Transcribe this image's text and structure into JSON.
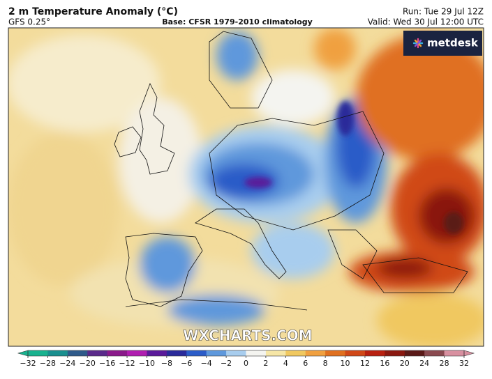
{
  "header": {
    "title": "2 m Temperature Anomaly (°C)",
    "model": "GFS 0.25°",
    "base": "Base: CFSR 1979-2010 climatology",
    "run": "Run: Tue 29 Jul 12Z",
    "valid": "Valid: Wed 30 Jul 12:00 UTC"
  },
  "logo": "metdesk",
  "watermark": "WXCHARTS.COM",
  "colorbar": {
    "ticks": [
      {
        "value": -32,
        "label": "−32"
      },
      {
        "value": -28,
        "label": "−28"
      },
      {
        "value": -24,
        "label": "−24"
      },
      {
        "value": -20,
        "label": "−20"
      },
      {
        "value": -16,
        "label": "−16"
      },
      {
        "value": -12,
        "label": "−12"
      },
      {
        "value": -10,
        "label": "−10"
      },
      {
        "value": -8,
        "label": "−8"
      },
      {
        "value": -6,
        "label": "−6"
      },
      {
        "value": -4,
        "label": "−4"
      },
      {
        "value": -2,
        "label": "−2"
      },
      0,
      2,
      4,
      6,
      8,
      10,
      12,
      16,
      20,
      24,
      28,
      32
    ],
    "colors": [
      "#19b28f",
      "#1a8f8f",
      "#2f5a8a",
      "#5a2a8a",
      "#8a1a8a",
      "#b01eb0",
      "#5a1a9a",
      "#2a2a9a",
      "#2b5cc8",
      "#5e98dc",
      "#a8cdee",
      "#f4f4f0",
      "#f6e6a6",
      "#f0c860",
      "#f0a040",
      "#e07020",
      "#d04818",
      "#b82010",
      "#8a1810",
      "#5a1a18",
      "#8a4a50",
      "#d890a0"
    ]
  }
}
